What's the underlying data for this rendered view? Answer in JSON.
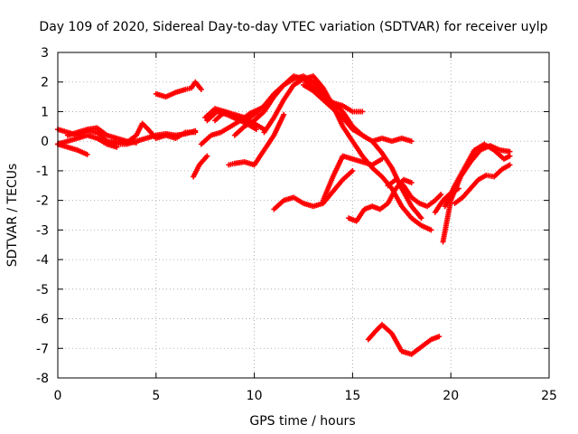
{
  "chart_data": {
    "type": "scatter",
    "title": "Day 109 of 2020, Sidereal Day-to-day VTEC variation (SDTVAR) for receiver uylp",
    "xlabel": "GPS time / hours",
    "ylabel": "SDTVAR / TECUs",
    "xlim": [
      0,
      25
    ],
    "ylim": [
      -8,
      3
    ],
    "xticks": [
      "0",
      "5",
      "10",
      "15",
      "20",
      "25"
    ],
    "yticks": [
      "3",
      "2",
      "1",
      "0",
      "-1",
      "-2",
      "-3",
      "-4",
      "-5",
      "-6",
      "-7",
      "-8"
    ],
    "grid": true,
    "marker": "plus",
    "color": "#ff0000",
    "series": [
      {
        "x": [
          0.0,
          0.5,
          1.0,
          1.5,
          2.0,
          2.5,
          3.0,
          3.5,
          4.0,
          4.5,
          5.0,
          5.5,
          6.0,
          6.5,
          7.0
        ],
        "y": [
          0.4,
          0.3,
          0.2,
          0.35,
          0.3,
          0.0,
          -0.1,
          -0.1,
          0.0,
          0.1,
          0.2,
          0.25,
          0.2,
          0.25,
          0.35
        ]
      },
      {
        "x": [
          0.0,
          0.5,
          1.0,
          1.5,
          2.0,
          2.5,
          3.0
        ],
        "y": [
          -0.1,
          0.0,
          0.1,
          0.2,
          0.1,
          -0.1,
          -0.2
        ]
      },
      {
        "x": [
          0.0,
          0.5,
          1.0,
          1.5
        ],
        "y": [
          -0.1,
          -0.2,
          -0.3,
          -0.45
        ]
      },
      {
        "x": [
          0.5,
          1.0,
          1.5,
          2.0,
          2.5,
          3.0,
          3.5,
          4.0
        ],
        "y": [
          0.2,
          0.3,
          0.4,
          0.45,
          0.2,
          0.1,
          0.0,
          -0.05
        ]
      },
      {
        "x": [
          2.5,
          3.0,
          3.5,
          4.0,
          4.3,
          4.6,
          5.0,
          5.5,
          6.0,
          6.5,
          7.0
        ],
        "y": [
          -0.05,
          0.0,
          -0.05,
          0.2,
          0.6,
          0.4,
          0.1,
          0.2,
          0.1,
          0.3,
          0.3
        ]
      },
      {
        "x": [
          5.0,
          5.5,
          6.0,
          6.5,
          6.8,
          7.0,
          7.3
        ],
        "y": [
          1.6,
          1.5,
          1.65,
          1.75,
          1.8,
          2.0,
          1.75
        ]
      },
      {
        "x": [
          6.9,
          7.2,
          7.6
        ],
        "y": [
          -1.2,
          -0.8,
          -0.5
        ]
      },
      {
        "x": [
          7.3,
          7.8,
          8.3,
          8.8,
          9.3,
          9.8,
          10.3
        ],
        "y": [
          -0.1,
          0.2,
          0.3,
          0.5,
          0.7,
          0.95,
          1.1
        ]
      },
      {
        "x": [
          7.5,
          8.0,
          8.5,
          9.0,
          9.5,
          10.0,
          10.5
        ],
        "y": [
          0.8,
          1.1,
          1.0,
          0.9,
          0.8,
          0.6,
          0.4
        ]
      },
      {
        "x": [
          7.6,
          8.1,
          8.6,
          9.1,
          9.6,
          10.1
        ],
        "y": [
          0.7,
          1.0,
          0.9,
          0.75,
          0.6,
          0.4
        ]
      },
      {
        "x": [
          8.0,
          8.5,
          9.0,
          9.5,
          10.0,
          10.5,
          11.0,
          11.5,
          12.0,
          12.5,
          13.0,
          13.5,
          14.0,
          14.5,
          15.0,
          15.5
        ],
        "y": [
          0.7,
          1.0,
          0.85,
          0.7,
          0.9,
          1.2,
          1.6,
          1.9,
          2.1,
          2.2,
          2.0,
          1.6,
          1.3,
          1.2,
          1.0,
          1.0
        ]
      },
      {
        "x": [
          9.0,
          9.5,
          10.0,
          10.5,
          11.0,
          11.5,
          12.0,
          12.5,
          13.0,
          13.5,
          14.0,
          14.5,
          15.0,
          15.5,
          16.0,
          16.5,
          17.0,
          17.5,
          18.0,
          18.5
        ],
        "y": [
          0.2,
          0.5,
          0.7,
          1.0,
          1.5,
          1.9,
          2.2,
          2.1,
          1.8,
          1.5,
          1.3,
          1.0,
          0.5,
          0.2,
          0.0,
          -0.4,
          -0.9,
          -1.6,
          -2.2,
          -2.6
        ]
      },
      {
        "x": [
          8.7,
          9.0,
          9.5,
          10.0,
          10.5,
          11.0,
          11.5
        ],
        "y": [
          -0.8,
          -0.75,
          -0.7,
          -0.8,
          -0.3,
          0.2,
          0.9
        ]
      },
      {
        "x": [
          10.5,
          11.0,
          11.5,
          12.0,
          12.5,
          13.0,
          13.5,
          14.0,
          14.5,
          15.0,
          15.5,
          16.0,
          16.5,
          17.0,
          17.5,
          18.0,
          18.5,
          19.0
        ],
        "y": [
          0.3,
          0.8,
          1.4,
          1.9,
          2.1,
          2.2,
          1.8,
          1.2,
          0.5,
          0.0,
          -0.5,
          -0.9,
          -1.2,
          -1.6,
          -2.2,
          -2.6,
          -2.85,
          -3.0
        ]
      },
      {
        "x": [
          12.5,
          13.0,
          13.5,
          14.0,
          14.5,
          15.0,
          15.5,
          16.0,
          16.5,
          17.0,
          17.5,
          18.0
        ],
        "y": [
          1.9,
          1.7,
          1.4,
          1.1,
          0.8,
          0.4,
          0.2,
          0.0,
          0.1,
          0.0,
          0.1,
          0.0
        ]
      },
      {
        "x": [
          11.0,
          11.5,
          12.0,
          12.5,
          13.0,
          13.5,
          14.0,
          14.5,
          15.0
        ],
        "y": [
          -2.3,
          -2.0,
          -1.9,
          -2.1,
          -2.2,
          -2.1,
          -1.7,
          -1.3,
          -1.0
        ]
      },
      {
        "x": [
          13.5,
          14.0,
          14.5,
          15.0,
          15.5,
          16.0,
          16.5
        ],
        "y": [
          -2.0,
          -1.2,
          -0.5,
          -0.6,
          -0.7,
          -0.8,
          -0.6
        ]
      },
      {
        "x": [
          14.8,
          15.2,
          15.6,
          16.0,
          16.4,
          16.8,
          17.2,
          17.6,
          18.0
        ],
        "y": [
          -2.6,
          -2.7,
          -2.3,
          -2.2,
          -2.3,
          -2.1,
          -1.6,
          -1.3,
          -1.4
        ]
      },
      {
        "x": [
          16.8,
          17.2,
          17.6,
          18.0,
          18.4,
          18.8,
          19.2,
          19.5
        ],
        "y": [
          -1.5,
          -1.3,
          -1.5,
          -1.9,
          -2.1,
          -2.2,
          -2.0,
          -1.8
        ]
      },
      {
        "x": [
          15.8,
          16.2,
          16.5,
          17.0,
          17.5,
          18.0,
          18.5,
          19.0,
          19.4
        ],
        "y": [
          -6.7,
          -6.4,
          -6.2,
          -6.5,
          -7.1,
          -7.2,
          -6.95,
          -6.7,
          -6.6
        ]
      },
      {
        "x": [
          19.6,
          20.0,
          20.5,
          21.0,
          21.5,
          22.0,
          22.5,
          23.0
        ],
        "y": [
          -3.4,
          -2.0,
          -1.2,
          -0.7,
          -0.3,
          -0.15,
          -0.3,
          -0.35
        ]
      },
      {
        "x": [
          19.7,
          20.2,
          20.7,
          21.2,
          21.7,
          22.2,
          22.7,
          23.0
        ],
        "y": [
          -2.2,
          -1.5,
          -0.9,
          -0.3,
          -0.1,
          -0.3,
          -0.6,
          -0.5
        ]
      },
      {
        "x": [
          20.2,
          20.6,
          21.0,
          21.4,
          21.8,
          22.2,
          22.6,
          23.0
        ],
        "y": [
          -2.1,
          -1.9,
          -1.6,
          -1.3,
          -1.15,
          -1.2,
          -0.95,
          -0.8
        ]
      },
      {
        "x": [
          19.2,
          19.6,
          20.0,
          20.4
        ],
        "y": [
          -2.4,
          -2.0,
          -1.75,
          -1.6
        ]
      }
    ]
  }
}
